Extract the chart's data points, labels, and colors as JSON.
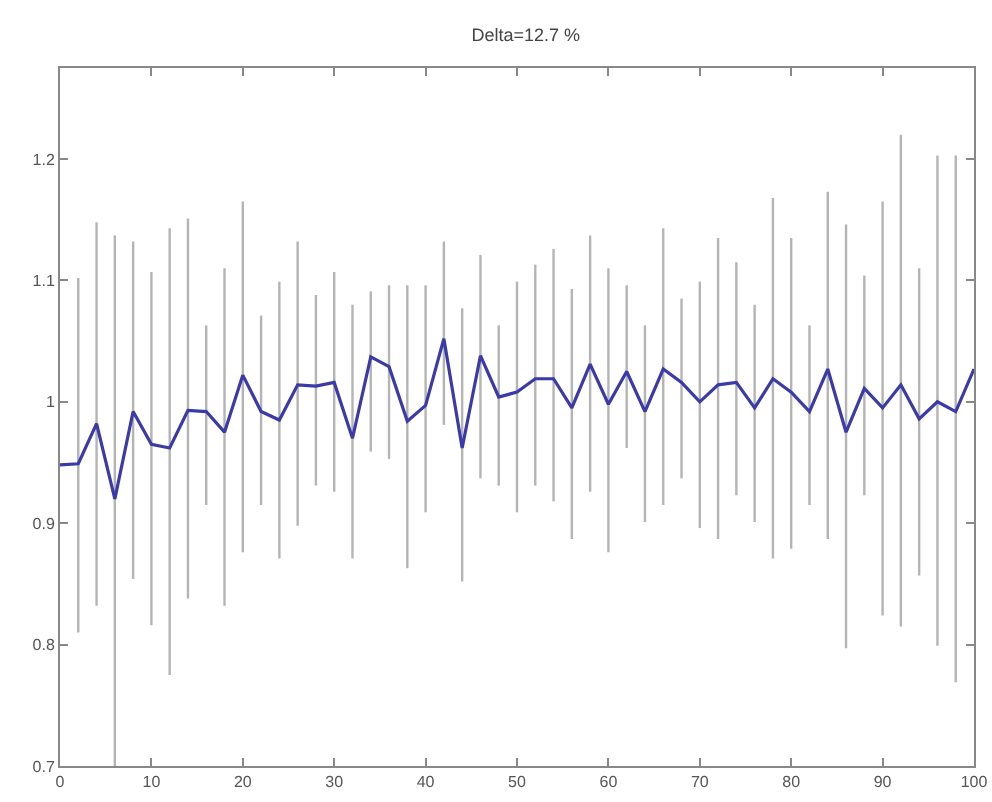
{
  "chart_data": {
    "type": "line",
    "title": "Delta=12.7 %",
    "x": [
      0,
      2,
      4,
      6,
      8,
      10,
      12,
      14,
      16,
      18,
      20,
      22,
      24,
      26,
      28,
      30,
      32,
      34,
      36,
      38,
      40,
      42,
      44,
      46,
      48,
      50,
      52,
      54,
      56,
      58,
      60,
      62,
      64,
      66,
      68,
      70,
      72,
      74,
      76,
      78,
      80,
      82,
      84,
      86,
      88,
      90,
      92,
      94,
      96,
      98,
      100
    ],
    "series": [
      {
        "color": "#3a3aa8",
        "values": [
          0.948,
          0.949,
          0.982,
          0.92,
          0.992,
          0.965,
          0.962,
          0.993,
          0.992,
          0.975,
          1.022,
          0.992,
          0.985,
          1.014,
          1.013,
          1.016,
          0.97,
          1.037,
          1.029,
          0.984,
          0.997,
          1.052,
          0.962,
          1.038,
          1.004,
          1.008,
          1.019,
          1.019,
          0.995,
          1.031,
          0.998,
          1.025,
          0.992,
          1.027,
          1.016,
          1.0,
          1.014,
          1.016,
          0.995,
          1.019,
          1.008,
          0.992,
          1.027,
          0.975,
          1.011,
          0.995,
          1.014,
          0.986,
          1.0,
          0.992,
          1.027
        ],
        "errors": [
          null,
          [
            0.81,
            1.102
          ],
          [
            0.832,
            1.148
          ],
          [
            0.7,
            1.137
          ],
          [
            0.854,
            1.132
          ],
          [
            0.816,
            1.107
          ],
          [
            0.775,
            1.143
          ],
          [
            0.838,
            1.151
          ],
          [
            0.915,
            1.063
          ],
          [
            0.832,
            1.11
          ],
          [
            0.876,
            1.165
          ],
          [
            0.915,
            1.071
          ],
          [
            0.871,
            1.099
          ],
          [
            0.898,
            1.132
          ],
          [
            0.931,
            1.088
          ],
          [
            0.926,
            1.107
          ],
          [
            0.871,
            1.08
          ],
          [
            0.959,
            1.091
          ],
          [
            0.953,
            1.096
          ],
          [
            0.863,
            1.096
          ],
          [
            0.909,
            1.096
          ],
          [
            0.981,
            1.132
          ],
          [
            0.852,
            1.077
          ],
          [
            0.937,
            1.121
          ],
          [
            0.931,
            1.063
          ],
          [
            0.909,
            1.099
          ],
          [
            0.931,
            1.113
          ],
          [
            0.918,
            1.126
          ],
          [
            0.887,
            1.093
          ],
          [
            0.926,
            1.137
          ],
          [
            0.876,
            1.11
          ],
          [
            0.962,
            1.096
          ],
          [
            0.901,
            1.063
          ],
          [
            0.915,
            1.143
          ],
          [
            0.937,
            1.085
          ],
          [
            0.896,
            1.099
          ],
          [
            0.887,
            1.135
          ],
          [
            0.923,
            1.115
          ],
          [
            0.901,
            1.08
          ],
          [
            0.871,
            1.168
          ],
          [
            0.879,
            1.135
          ],
          [
            0.915,
            1.063
          ],
          [
            0.887,
            1.173
          ],
          [
            0.797,
            1.146
          ],
          [
            0.923,
            1.104
          ],
          [
            0.824,
            1.165
          ],
          [
            0.815,
            1.22
          ],
          [
            0.857,
            1.11
          ],
          [
            0.799,
            1.203
          ],
          [
            0.769,
            1.203
          ],
          null
        ]
      }
    ],
    "xlim": [
      0,
      100
    ],
    "xticks": [
      0,
      10,
      20,
      30,
      40,
      50,
      60,
      70,
      80,
      90,
      100
    ],
    "ylim": [
      0.7,
      1.275
    ],
    "yticks": [
      0.7,
      0.8,
      0.9,
      1,
      1.1,
      1.2
    ],
    "grid": false,
    "marker": "none",
    "line_style": "solid"
  }
}
